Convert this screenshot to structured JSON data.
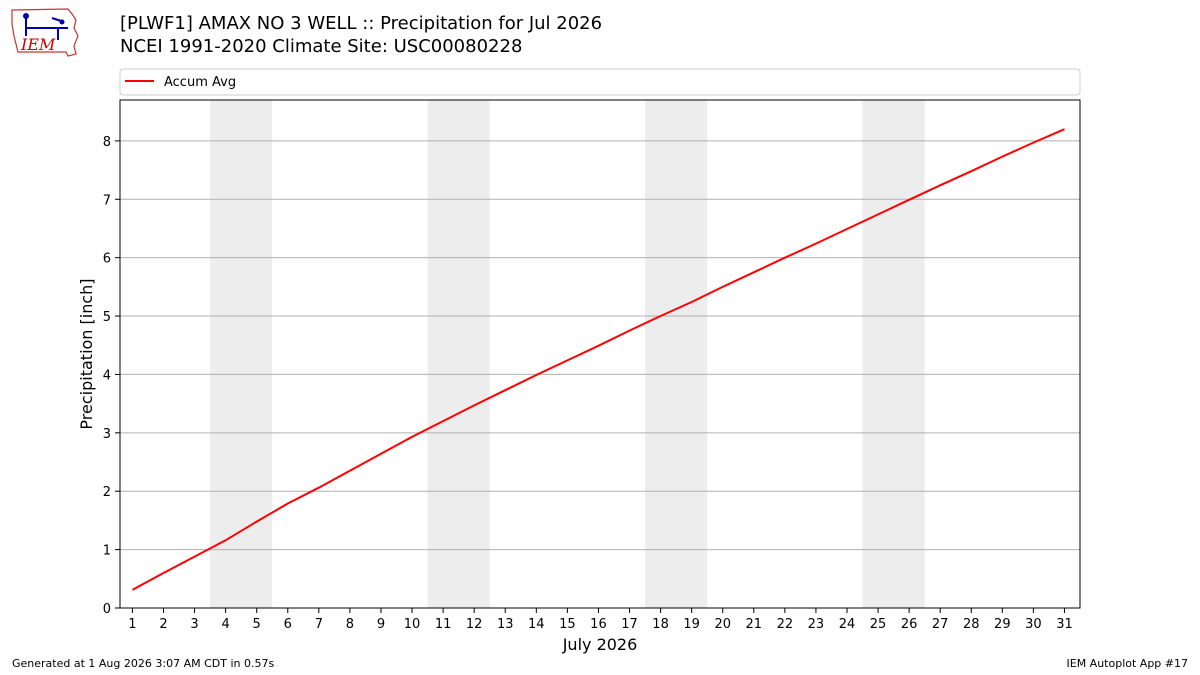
{
  "header": {
    "title_line1": "[PLWF1] AMAX NO 3 WELL :: Precipitation for Jul 2026",
    "title_line2": "NCEI 1991-2020 Climate Site: USC00080228"
  },
  "logo": {
    "text": "IEM",
    "icon": "iem-logo-icon"
  },
  "footer": {
    "left": "Generated at 1 Aug 2026 3:07 AM CDT in 0.57s",
    "right": "IEM Autoplot App #17"
  },
  "colors": {
    "series": "#ff0000",
    "weekend": "#ededed",
    "grid": "#b0b0b0"
  },
  "chart_data": {
    "type": "line",
    "title": "[PLWF1] AMAX NO 3 WELL :: Precipitation for Jul 2026",
    "subtitle": "NCEI 1991-2020 Climate Site: USC00080228",
    "xlabel": "July 2026",
    "ylabel": "Precipitation [inch]",
    "x": [
      1,
      2,
      3,
      4,
      5,
      6,
      7,
      8,
      9,
      10,
      11,
      12,
      13,
      14,
      15,
      16,
      17,
      18,
      19,
      20,
      21,
      22,
      23,
      24,
      25,
      26,
      27,
      28,
      29,
      30,
      31
    ],
    "xticks": [
      "1",
      "2",
      "3",
      "4",
      "5",
      "6",
      "7",
      "8",
      "9",
      "10",
      "11",
      "12",
      "13",
      "14",
      "15",
      "16",
      "17",
      "18",
      "19",
      "20",
      "21",
      "22",
      "23",
      "24",
      "25",
      "26",
      "27",
      "28",
      "29",
      "30",
      "31"
    ],
    "yticks": [
      "0",
      "1",
      "2",
      "3",
      "4",
      "5",
      "6",
      "7",
      "8"
    ],
    "xlim": [
      0.6,
      31.5
    ],
    "ylim": [
      0,
      8.7
    ],
    "series": [
      {
        "name": "Accum Avg",
        "color": "#ff0000",
        "values": [
          0.31,
          0.6,
          0.88,
          1.16,
          1.48,
          1.79,
          2.06,
          2.35,
          2.64,
          2.93,
          3.2,
          3.47,
          3.73,
          3.99,
          4.24,
          4.49,
          4.75,
          5.0,
          5.24,
          5.5,
          5.75,
          6.0,
          6.24,
          6.49,
          6.74,
          6.99,
          7.24,
          7.48,
          7.73,
          7.97,
          8.2
        ]
      }
    ],
    "shaded_days": [
      [
        3.5,
        5.5
      ],
      [
        10.5,
        12.5
      ],
      [
        17.5,
        19.5
      ],
      [
        24.5,
        26.5
      ]
    ],
    "grid": "horizontal",
    "legend": "top"
  }
}
